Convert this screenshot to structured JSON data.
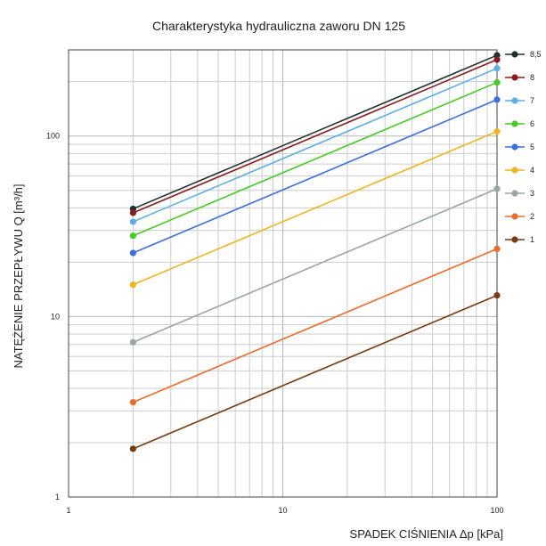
{
  "chart_data": {
    "type": "line",
    "title": "Charakterystyka hydrauliczna zaworu DN 125",
    "xlabel": "SPADEK CIŚNIENIA Δp  [kPa]",
    "ylabel": "NATĘŻENIE PRZEPŁYWU Q  [m³/h]",
    "x_scale": "log",
    "y_scale": "log",
    "xlim": [
      1,
      100
    ],
    "ylim": [
      1,
      300
    ],
    "x_ticks": [
      1,
      10,
      100
    ],
    "x_tick_labels": [
      "1",
      "10",
      "100"
    ],
    "y_ticks": [
      1,
      10,
      100
    ],
    "y_tick_labels": [
      "1",
      "10",
      "100"
    ],
    "grid": true,
    "legend_position": "right",
    "series": [
      {
        "name": "8,5",
        "color": "#1f2f2f",
        "x": [
          2,
          100
        ],
        "y": [
          39.5,
          280
        ]
      },
      {
        "name": "8",
        "color": "#8b1a1a",
        "x": [
          2,
          100
        ],
        "y": [
          37.5,
          265
        ]
      },
      {
        "name": "7",
        "color": "#5aaee8",
        "x": [
          2,
          100
        ],
        "y": [
          33.5,
          237
        ]
      },
      {
        "name": "6",
        "color": "#44cc22",
        "x": [
          2,
          100
        ],
        "y": [
          28,
          198
        ]
      },
      {
        "name": "5",
        "color": "#3a6fe0",
        "x": [
          2,
          100
        ],
        "y": [
          22.5,
          159
        ]
      },
      {
        "name": "4",
        "color": "#f0b41e",
        "x": [
          2,
          100
        ],
        "y": [
          15,
          106
        ]
      },
      {
        "name": "3",
        "color": "#9aa5a0",
        "x": [
          2,
          100
        ],
        "y": [
          7.2,
          51
        ]
      },
      {
        "name": "2",
        "color": "#f06a2a",
        "x": [
          2,
          100
        ],
        "y": [
          3.35,
          23.7
        ]
      },
      {
        "name": "1",
        "color": "#7a3a10",
        "x": [
          2,
          100
        ],
        "y": [
          1.85,
          13.1
        ]
      }
    ]
  }
}
